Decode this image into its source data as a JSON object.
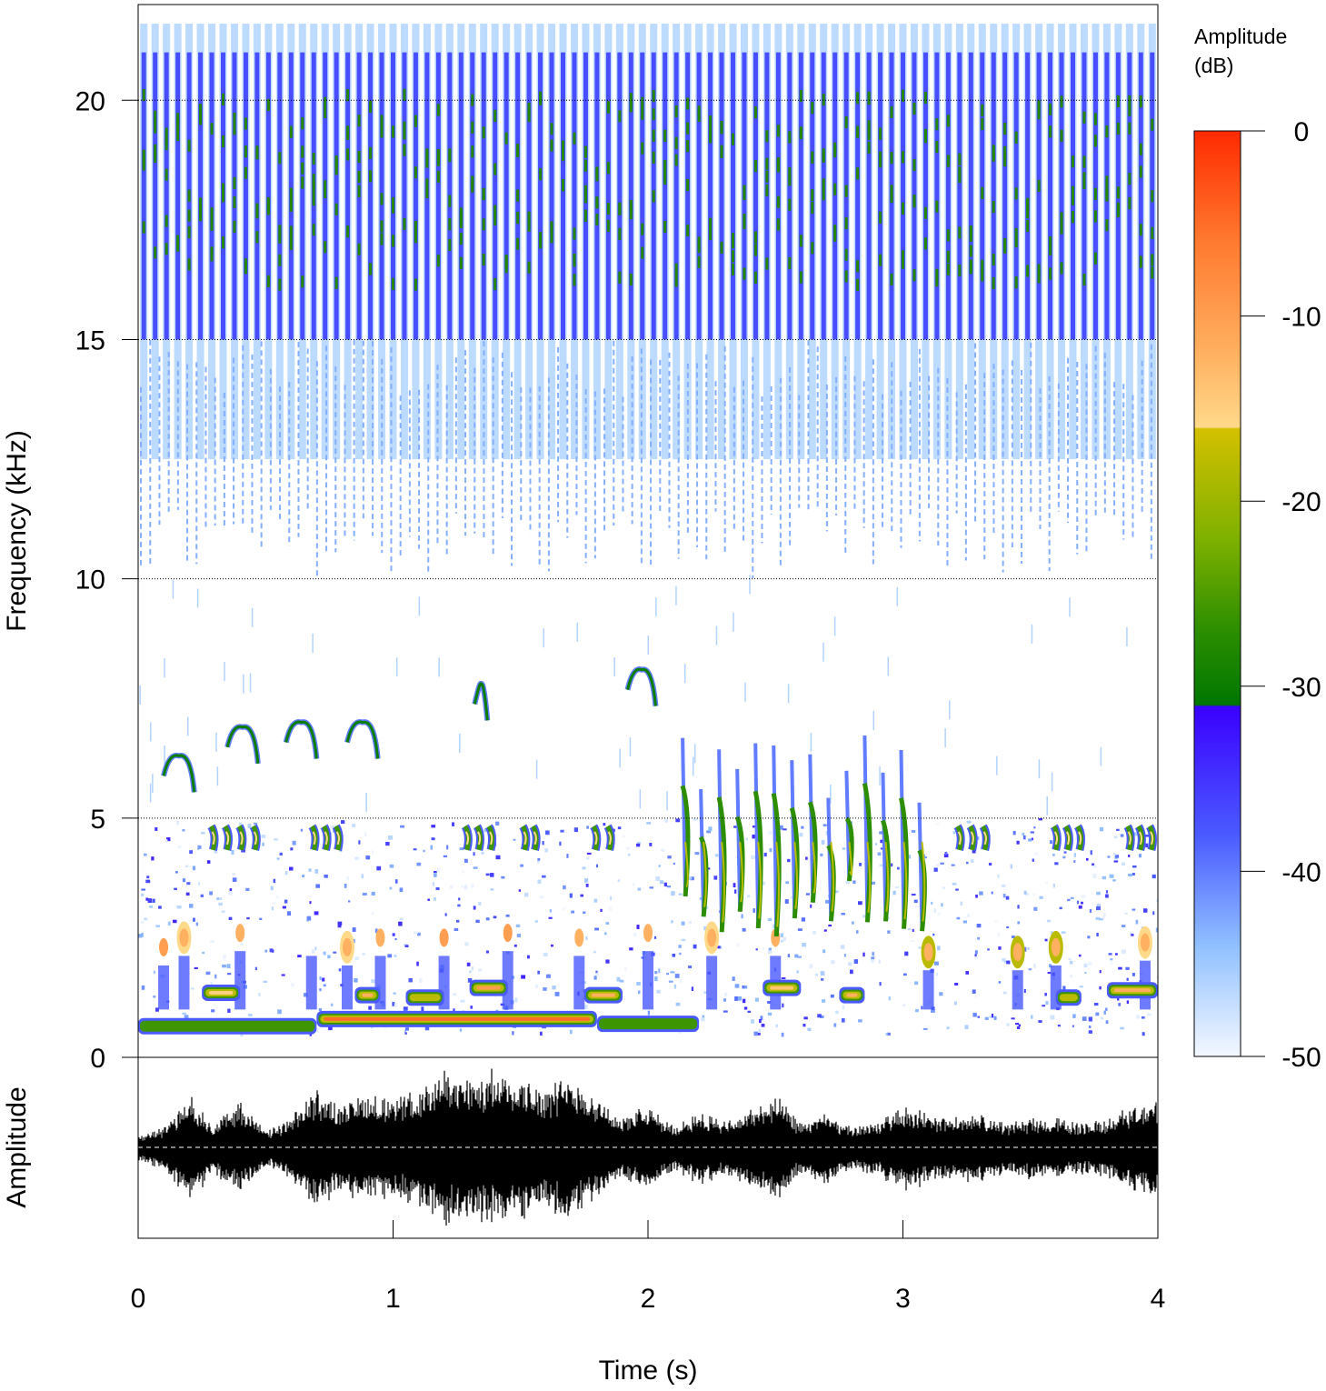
{
  "chart_data": [
    {
      "type": "heatmap",
      "title": "",
      "xlabel": "Time (s)",
      "ylabel": "Frequency (kHz)",
      "xlim": [
        0,
        4
      ],
      "ylim": [
        0,
        22
      ],
      "x_ticks": [
        "0",
        "1",
        "2",
        "3",
        "4"
      ],
      "x_tick_values": [
        0,
        1,
        2,
        3,
        4
      ],
      "y_ticks": [
        "0",
        "5",
        "10",
        "15",
        "20"
      ],
      "y_tick_values": [
        0,
        5,
        10,
        15,
        20
      ],
      "grid": "dotted horizontal lines at 5, 10, 15, 20 kHz",
      "features": {
        "high_band_pulses": {
          "f_low_khz": 15,
          "f_high_khz": 21,
          "repetitions": 90
        },
        "mid_band_pulses": {
          "f_low_khz": 10,
          "f_high_khz": 15
        },
        "low_tone_bars": [
          {
            "t0": 0.0,
            "t1": 0.7,
            "f": 0.65,
            "level_db": -28
          },
          {
            "t0": 0.7,
            "t1": 1.8,
            "f": 0.8,
            "level_db": -5
          },
          {
            "t0": 1.8,
            "t1": 2.2,
            "f": 0.7,
            "level_db": -22
          },
          {
            "t0": 0.25,
            "t1": 0.4,
            "f": 1.35,
            "level_db": -15
          },
          {
            "t0": 0.85,
            "t1": 0.95,
            "f": 1.3,
            "level_db": -12
          },
          {
            "t0": 1.05,
            "t1": 1.2,
            "f": 1.25,
            "level_db": -20
          },
          {
            "t0": 1.3,
            "t1": 1.45,
            "f": 1.45,
            "level_db": -10
          },
          {
            "t0": 1.75,
            "t1": 1.9,
            "f": 1.3,
            "level_db": -12
          },
          {
            "t0": 2.45,
            "t1": 2.6,
            "f": 1.45,
            "level_db": -14
          },
          {
            "t0": 2.75,
            "t1": 2.85,
            "f": 1.3,
            "level_db": -12
          },
          {
            "t0": 3.6,
            "t1": 3.7,
            "f": 1.25,
            "level_db": -18
          },
          {
            "t0": 3.8,
            "t1": 4.0,
            "f": 1.4,
            "level_db": -12
          }
        ],
        "blobs": [
          {
            "t": 0.1,
            "f": 2.3,
            "level_db": -10
          },
          {
            "t": 0.18,
            "f": 2.5,
            "level_db": -16
          },
          {
            "t": 0.4,
            "f": 2.6,
            "level_db": -14
          },
          {
            "t": 0.68,
            "f": 2.5,
            "level_db": -8
          },
          {
            "t": 0.82,
            "f": 2.3,
            "level_db": -16
          },
          {
            "t": 0.95,
            "f": 2.5,
            "level_db": -14
          },
          {
            "t": 1.2,
            "f": 2.5,
            "level_db": -10
          },
          {
            "t": 1.45,
            "f": 2.6,
            "level_db": -10
          },
          {
            "t": 1.73,
            "f": 2.5,
            "level_db": -12
          },
          {
            "t": 2.0,
            "f": 2.6,
            "level_db": -12
          },
          {
            "t": 2.25,
            "f": 2.5,
            "level_db": -16
          },
          {
            "t": 2.5,
            "f": 2.5,
            "level_db": -14
          },
          {
            "t": 3.1,
            "f": 2.2,
            "level_db": -18
          },
          {
            "t": 3.45,
            "f": 2.2,
            "level_db": -18
          },
          {
            "t": 3.6,
            "f": 2.3,
            "level_db": -20
          },
          {
            "t": 3.95,
            "f": 2.4,
            "level_db": -16
          }
        ],
        "upper_chirps": [
          {
            "t0": 0.1,
            "t1": 0.22,
            "f": 6.3
          },
          {
            "t0": 0.35,
            "t1": 0.47,
            "f": 6.9
          },
          {
            "t0": 0.58,
            "t1": 0.7,
            "f": 7.0
          },
          {
            "t0": 0.82,
            "t1": 0.94,
            "f": 7.0
          },
          {
            "t0": 1.32,
            "t1": 1.37,
            "f": 7.8
          },
          {
            "t0": 1.92,
            "t1": 2.03,
            "f": 8.1
          }
        ],
        "syllable_trills": [
          {
            "t0": 0.27,
            "t1": 0.49,
            "f": 4.6,
            "count": 4
          },
          {
            "t0": 0.67,
            "t1": 0.81,
            "f": 4.6,
            "count": 3
          },
          {
            "t0": 1.27,
            "t1": 1.41,
            "f": 4.6,
            "count": 3
          },
          {
            "t0": 1.5,
            "t1": 1.58,
            "f": 4.6,
            "count": 2
          },
          {
            "t0": 1.77,
            "t1": 1.88,
            "f": 4.6,
            "count": 2
          },
          {
            "t0": 3.2,
            "t1": 3.35,
            "f": 4.6,
            "count": 3
          },
          {
            "t0": 3.58,
            "t1": 3.72,
            "f": 4.6,
            "count": 3
          },
          {
            "t0": 3.87,
            "t1": 4.0,
            "f": 4.6,
            "count": 3
          }
        ],
        "downsweep_region": {
          "t0": 2.1,
          "t1": 3.1,
          "f_top": 6.8,
          "f_bottom": 2.5,
          "count": 14
        }
      }
    },
    {
      "type": "line",
      "title": "",
      "xlabel": "Time (s)",
      "ylabel": "Amplitude",
      "xlim": [
        0,
        4
      ],
      "ylim": [
        -1,
        1
      ],
      "zero_line": "dashed at amplitude 0",
      "envelope": [
        [
          0.0,
          0.15
        ],
        [
          0.1,
          0.25
        ],
        [
          0.2,
          0.6
        ],
        [
          0.3,
          0.3
        ],
        [
          0.4,
          0.55
        ],
        [
          0.5,
          0.2
        ],
        [
          0.6,
          0.35
        ],
        [
          0.7,
          0.7
        ],
        [
          0.8,
          0.5
        ],
        [
          0.9,
          0.65
        ],
        [
          1.0,
          0.55
        ],
        [
          1.1,
          0.7
        ],
        [
          1.2,
          0.9
        ],
        [
          1.3,
          0.8
        ],
        [
          1.4,
          0.9
        ],
        [
          1.5,
          0.85
        ],
        [
          1.6,
          0.7
        ],
        [
          1.7,
          0.85
        ],
        [
          1.8,
          0.6
        ],
        [
          1.9,
          0.35
        ],
        [
          2.0,
          0.5
        ],
        [
          2.1,
          0.25
        ],
        [
          2.2,
          0.45
        ],
        [
          2.3,
          0.3
        ],
        [
          2.5,
          0.6
        ],
        [
          2.6,
          0.3
        ],
        [
          2.7,
          0.4
        ],
        [
          2.8,
          0.25
        ],
        [
          2.9,
          0.3
        ],
        [
          3.0,
          0.5
        ],
        [
          3.1,
          0.4
        ],
        [
          3.2,
          0.35
        ],
        [
          3.3,
          0.4
        ],
        [
          3.4,
          0.3
        ],
        [
          3.5,
          0.35
        ],
        [
          3.6,
          0.35
        ],
        [
          3.7,
          0.3
        ],
        [
          3.8,
          0.35
        ],
        [
          3.9,
          0.5
        ],
        [
          4.0,
          0.55
        ]
      ]
    }
  ],
  "colorbar": {
    "title_line1": "Amplitude",
    "title_line2": "(dB)",
    "ticks": [
      "0",
      "-10",
      "-20",
      "-30",
      "-40",
      "-50"
    ],
    "tick_values": [
      0,
      -10,
      -20,
      -30,
      -40,
      -50
    ],
    "range_db": [
      -50,
      0
    ],
    "stops": [
      {
        "db": 0,
        "color": "#ff2a00"
      },
      {
        "db": -6,
        "color": "#ff7a30"
      },
      {
        "db": -12,
        "color": "#ffb060"
      },
      {
        "db": -16,
        "color": "#ffd98a"
      },
      {
        "db": -16.1,
        "color": "#d4c000"
      },
      {
        "db": -22,
        "color": "#7fb100"
      },
      {
        "db": -27,
        "color": "#2c8e00"
      },
      {
        "db": -31,
        "color": "#007700"
      },
      {
        "db": -31.1,
        "color": "#3a00ff"
      },
      {
        "db": -38,
        "color": "#4a5aff"
      },
      {
        "db": -44,
        "color": "#90c0ff"
      },
      {
        "db": -50,
        "color": "#f4f8ff"
      }
    ]
  }
}
